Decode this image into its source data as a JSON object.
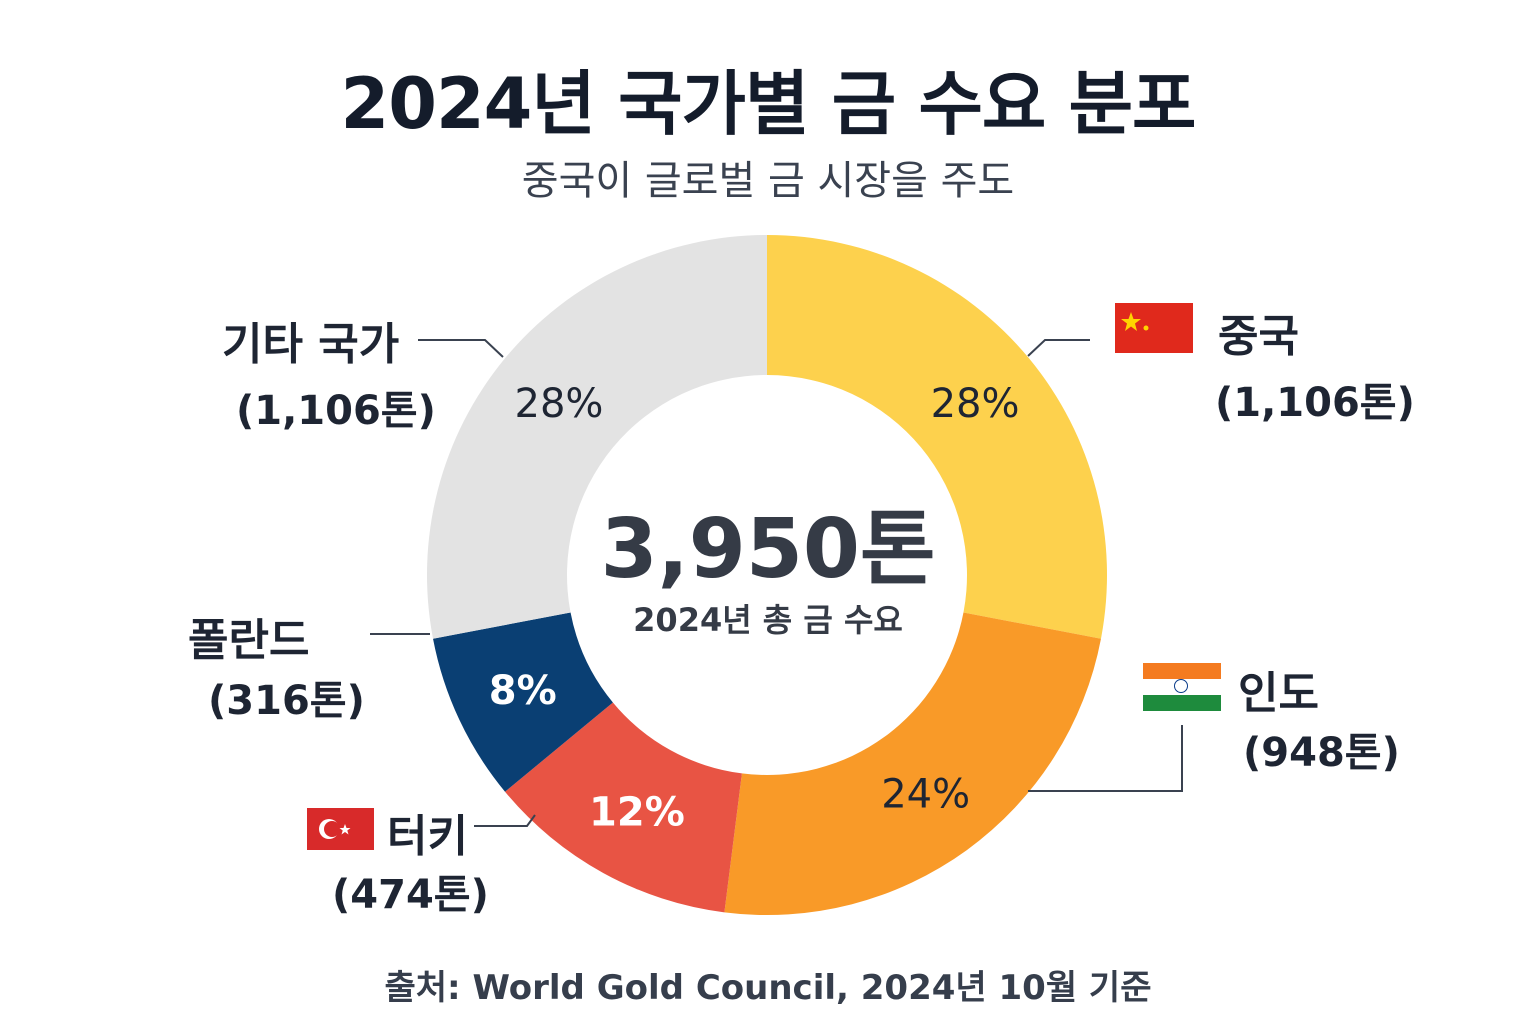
{
  "title": "2024년 국가별 금 수요 분포",
  "subtitle": "중국이 글로벌 금 시장을 주도",
  "center": {
    "total": "3,950톤",
    "label": "2024년 총 금 수요"
  },
  "source": "출처: World Gold Council, 2024년 10월 기준",
  "chart_data": {
    "type": "pie",
    "variant": "donut",
    "start": "top, clockwise",
    "total": 3950,
    "unit": "톤",
    "slices": [
      {
        "name": "중국",
        "value": 1106,
        "value_label": "(1,106톤)",
        "percent": 28,
        "percent_label": "28%",
        "color": "#FDD14D",
        "text_color": "#1e2533",
        "flag": "china-flag"
      },
      {
        "name": "인도",
        "value": 948,
        "value_label": "(948톤)",
        "percent": 24,
        "percent_label": "24%",
        "color": "#F99A28",
        "text_color": "#1e2533",
        "flag": "india-flag"
      },
      {
        "name": "터키",
        "value": 474,
        "value_label": "(474톤)",
        "percent": 12,
        "percent_label": "12%",
        "color": "#E85444",
        "text_color": "#ffffff",
        "flag": "turkey-flag"
      },
      {
        "name": "폴란드",
        "value": 316,
        "value_label": "(316톤)",
        "percent": 8,
        "percent_label": "8%",
        "color": "#0A3F73",
        "text_color": "#ffffff"
      },
      {
        "name": "기타 국가",
        "value": 1106,
        "value_label": "(1,106톤)",
        "percent": 28,
        "percent_label": "28%",
        "color": "#E3E3E3",
        "text_color": "#1e2533"
      }
    ]
  }
}
